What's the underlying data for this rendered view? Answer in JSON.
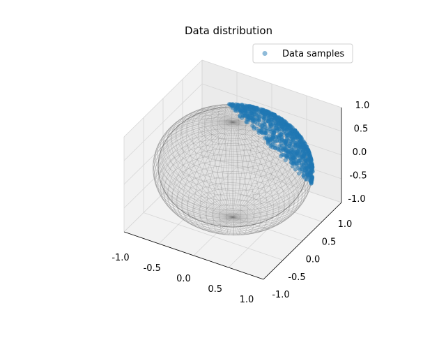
{
  "chart_data": {
    "type": "scatter",
    "projection": "3d",
    "title": "Data distribution",
    "xlabel": "",
    "ylabel": "",
    "zlabel": "",
    "xlim": [
      -1.0,
      1.0
    ],
    "ylim": [
      -1.0,
      1.0
    ],
    "zlim": [
      -1.0,
      1.0
    ],
    "x_ticks": [
      "-1.0",
      "-0.5",
      "0.0",
      "0.5",
      "1.0"
    ],
    "y_ticks": [
      "-1.0",
      "-0.5",
      "0.0",
      "0.5",
      "1.0"
    ],
    "z_ticks": [
      "-1.0",
      "-0.5",
      "0.0",
      "0.5",
      "1.0"
    ],
    "grid": true,
    "legend": {
      "position": "upper-right",
      "entries": [
        "Data samples"
      ]
    },
    "surface": {
      "kind": "unit-sphere-wireframe",
      "color": "#808080"
    },
    "series": [
      {
        "name": "Data samples",
        "color": "#1f77b4",
        "alpha": 0.5,
        "distribution": "cap on the unit sphere",
        "approx_mean_direction": [
          0.45,
          0.75,
          0.5
        ]
      }
    ]
  }
}
